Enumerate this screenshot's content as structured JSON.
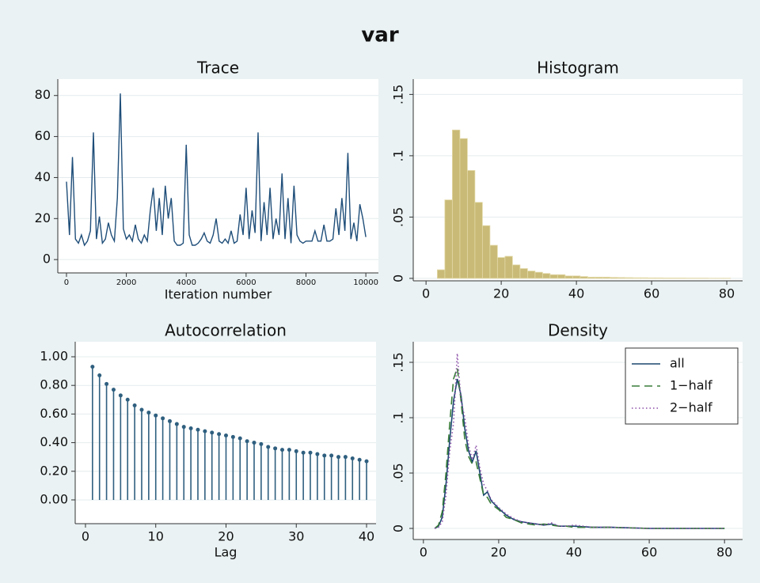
{
  "title": "var",
  "chart_data": [
    {
      "type": "line",
      "title": "Trace",
      "x_label": "Iteration number",
      "color": "#1f4e79",
      "grid": true,
      "x": [
        0,
        100,
        200,
        300,
        400,
        500,
        600,
        700,
        800,
        900,
        1000,
        1100,
        1200,
        1300,
        1400,
        1500,
        1600,
        1700,
        1800,
        1900,
        2000,
        2100,
        2200,
        2300,
        2400,
        2500,
        2600,
        2700,
        2800,
        2900,
        3000,
        3100,
        3200,
        3300,
        3400,
        3500,
        3600,
        3700,
        3800,
        3900,
        4000,
        4100,
        4200,
        4300,
        4400,
        4500,
        4600,
        4700,
        4800,
        4900,
        5000,
        5100,
        5200,
        5300,
        5400,
        5500,
        5600,
        5700,
        5800,
        5900,
        6000,
        6100,
        6200,
        6300,
        6400,
        6500,
        6600,
        6700,
        6800,
        6900,
        7000,
        7100,
        7200,
        7300,
        7400,
        7500,
        7600,
        7700,
        7800,
        7900,
        8000,
        8100,
        8200,
        8300,
        8400,
        8500,
        8600,
        8700,
        8800,
        8900,
        9000,
        9100,
        9200,
        9300,
        9400,
        9500,
        9600,
        9700,
        9800,
        9900,
        10000
      ],
      "values": [
        38,
        12,
        50,
        10,
        8,
        12,
        7,
        9,
        14,
        62,
        10,
        21,
        8,
        10,
        18,
        12,
        9,
        30,
        81,
        15,
        10,
        12,
        9,
        17,
        10,
        8,
        12,
        9,
        24,
        35,
        14,
        30,
        12,
        36,
        20,
        30,
        9,
        7,
        7,
        8,
        56,
        12,
        7,
        7,
        8,
        10,
        13,
        9,
        8,
        12,
        20,
        9,
        8,
        10,
        8,
        14,
        8,
        9,
        22,
        12,
        35,
        10,
        24,
        13,
        62,
        9,
        28,
        12,
        35,
        10,
        20,
        12,
        42,
        10,
        30,
        8,
        36,
        12,
        9,
        8,
        9,
        9,
        9,
        14,
        9,
        9,
        17,
        9,
        9,
        10,
        25,
        12,
        30,
        14,
        52,
        10,
        18,
        9,
        27,
        20,
        11
      ],
      "xlim": [
        -290,
        10420
      ],
      "xticks": [
        0,
        2000,
        4000,
        6000,
        8000,
        10000
      ],
      "ylim": [
        -6.5,
        88
      ],
      "yticks": [
        0,
        20,
        40,
        60,
        80
      ]
    },
    {
      "type": "histogram",
      "title": "Histogram",
      "color": "#c9bb77",
      "grid": true,
      "bins": [
        3,
        5,
        7,
        9,
        11,
        13,
        15,
        17,
        19,
        21,
        23,
        25,
        27,
        29,
        31,
        33,
        35,
        37,
        39,
        41,
        43,
        45,
        47,
        49,
        51,
        53,
        55,
        57,
        59,
        61,
        63,
        65,
        67,
        69,
        71,
        73,
        75,
        77,
        79,
        81
      ],
      "counts": [
        0.007,
        0.064,
        0.121,
        0.114,
        0.088,
        0.062,
        0.043,
        0.027,
        0.017,
        0.018,
        0.011,
        0.008,
        0.006,
        0.005,
        0.004,
        0.003,
        0.003,
        0.002,
        0.002,
        0.0015,
        0.001,
        0.001,
        0.001,
        0.0008,
        0.0007,
        0.0006,
        0.0005,
        0.0005,
        0.0004,
        0.0004,
        0.0003,
        0.0003,
        0.0003,
        0.0002,
        0.0002,
        0.0002,
        0.0001,
        0.0001,
        0.0001
      ],
      "xlim": [
        -3.4,
        84.2
      ],
      "xticks": [
        0,
        20,
        40,
        60,
        80
      ],
      "ylim": [
        -0.002,
        0.1625
      ],
      "yticks": [
        0,
        {
          "value": 0.05,
          "label": ".05"
        },
        {
          "value": 0.1,
          "label": ".1"
        },
        {
          "value": 0.15,
          "label": ".15"
        }
      ]
    },
    {
      "type": "stem",
      "title": "Autocorrelation",
      "x_label": "Lag",
      "color": "#2f5f7f",
      "grid": true,
      "x": [
        1,
        2,
        3,
        4,
        5,
        6,
        7,
        8,
        9,
        10,
        11,
        12,
        13,
        14,
        15,
        16,
        17,
        18,
        19,
        20,
        21,
        22,
        23,
        24,
        25,
        26,
        27,
        28,
        29,
        30,
        31,
        32,
        33,
        34,
        35,
        36,
        37,
        38,
        39,
        40
      ],
      "values": [
        0.93,
        0.87,
        0.81,
        0.77,
        0.73,
        0.7,
        0.66,
        0.63,
        0.61,
        0.59,
        0.57,
        0.55,
        0.53,
        0.51,
        0.5,
        0.49,
        0.48,
        0.47,
        0.46,
        0.45,
        0.44,
        0.43,
        0.41,
        0.4,
        0.39,
        0.37,
        0.36,
        0.35,
        0.35,
        0.34,
        0.33,
        0.33,
        0.32,
        0.31,
        0.31,
        0.3,
        0.3,
        0.29,
        0.28,
        0.27
      ],
      "xlim": [
        -1.46,
        41.35
      ],
      "xticks": [
        0,
        10,
        20,
        30,
        40
      ],
      "ylim": [
        -0.166,
        1.105
      ],
      "yticks": [
        {
          "value": 0,
          "label": "0.00"
        },
        {
          "value": 0.2,
          "label": "0.20"
        },
        {
          "value": 0.4,
          "label": "0.40"
        },
        {
          "value": 0.6,
          "label": "0.60"
        },
        {
          "value": 0.8,
          "label": "0.80"
        },
        {
          "value": 1,
          "label": "1.00"
        }
      ]
    },
    {
      "type": "line",
      "title": "Density",
      "grid": true,
      "legend": "top-right",
      "x": [
        3,
        4,
        5,
        6,
        7,
        8,
        9,
        10,
        11,
        12,
        13,
        14,
        15,
        16,
        17,
        18,
        20,
        22,
        24,
        26,
        28,
        30,
        32,
        34,
        36,
        38,
        40,
        45,
        50,
        60,
        70,
        80
      ],
      "series": [
        {
          "name": "all",
          "color": "#1a476f",
          "dash": "solid",
          "values": [
            0,
            0.002,
            0.01,
            0.04,
            0.08,
            0.115,
            0.135,
            0.12,
            0.09,
            0.07,
            0.06,
            0.07,
            0.05,
            0.03,
            0.033,
            0.025,
            0.018,
            0.012,
            0.008,
            0.006,
            0.005,
            0.004,
            0.003,
            0.004,
            0.002,
            0.002,
            0.002,
            0.001,
            0.001,
            0,
            0,
            0
          ]
        },
        {
          "name": "1−half",
          "color": "#3a7d3a",
          "dash": "dashed",
          "values": [
            0,
            0.003,
            0.015,
            0.05,
            0.095,
            0.135,
            0.145,
            0.115,
            0.08,
            0.065,
            0.058,
            0.06,
            0.045,
            0.03,
            0.028,
            0.022,
            0.017,
            0.01,
            0.008,
            0.005,
            0.004,
            0.003,
            0.004,
            0.003,
            0.002,
            0.002,
            0.001,
            0.001,
            0.001,
            0,
            0,
            0
          ]
        },
        {
          "name": "2−half",
          "color": "#8b4fa8",
          "dash": "dotted",
          "values": [
            0,
            0.001,
            0.006,
            0.03,
            0.07,
            0.095,
            0.158,
            0.115,
            0.1,
            0.075,
            0.062,
            0.075,
            0.055,
            0.04,
            0.034,
            0.026,
            0.019,
            0.013,
            0.009,
            0.006,
            0.005,
            0.004,
            0.003,
            0.005,
            0.002,
            0.002,
            0.003,
            0.001,
            0.001,
            0,
            0,
            0
          ]
        }
      ],
      "xlim": [
        -2.7,
        84.8
      ],
      "xticks": [
        0,
        20,
        40,
        60,
        80
      ],
      "ylim": [
        -0.01,
        0.1686
      ],
      "yticks": [
        0,
        {
          "value": 0.05,
          "label": ".05"
        },
        {
          "value": 0.1,
          "label": ".1"
        },
        {
          "value": 0.15,
          "label": ".15"
        }
      ]
    }
  ]
}
